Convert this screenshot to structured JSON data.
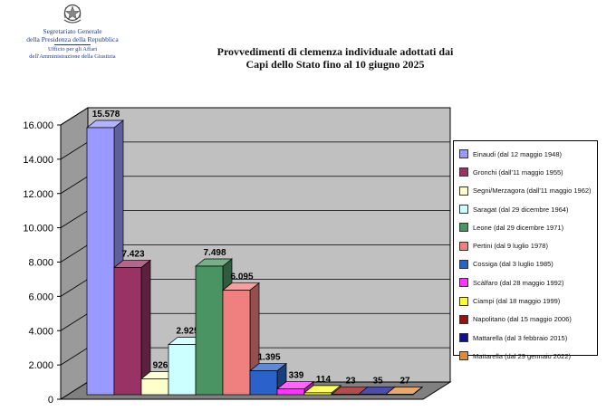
{
  "header": {
    "line1": "Segretariato Generale",
    "line2": "della Presidenza della Repubblica",
    "line3": "Ufficio per gli Affari",
    "line4": "dell'Amministrazione della Giustizia"
  },
  "chart_data": {
    "type": "bar",
    "title_line1": "Provvedimenti di clemenza individuale adottati dai",
    "title_line2": "Capi dello Stato fino al 10 giugno 2025",
    "ylim": [
      0,
      16000
    ],
    "yticks": [
      "0",
      "2.000",
      "4.000",
      "6.000",
      "8.000",
      "10.000",
      "12.000",
      "14.000",
      "16.000"
    ],
    "grid": true,
    "legend_position": "right",
    "series": [
      {
        "name": "Einaudi (dal 12 maggio 1948)",
        "value": 15578,
        "label": "15.578",
        "color": "#9999ff"
      },
      {
        "name": "Gronchi (dall'11 maggio 1955)",
        "value": 7423,
        "label": "7.423",
        "color": "#993366"
      },
      {
        "name": "Segni/Merzagora (dall'11 maggio 1962)",
        "value": 926,
        "label": "926",
        "color": "#ffffcc"
      },
      {
        "name": "Saragat (dal 29 dicembre 1964)",
        "value": 2925,
        "label": "2.925",
        "color": "#ccffff"
      },
      {
        "name": "Leone (dal 29 dicembre 1971)",
        "value": 7498,
        "label": "7.498",
        "color": "#4a9463"
      },
      {
        "name": "Pertini (dal 9 luglio 1978)",
        "value": 6095,
        "label": "6.095",
        "color": "#f08080"
      },
      {
        "name": "Cossiga (dal 3 luglio 1985)",
        "value": 1395,
        "label": "1.395",
        "color": "#2a62c9"
      },
      {
        "name": "Scàlfaro (dal 28 maggio 1992)",
        "value": 339,
        "label": "339",
        "color": "#ff33ff"
      },
      {
        "name": "Ciampi (dal 18 maggio 1999)",
        "value": 114,
        "label": "114",
        "color": "#ffff33"
      },
      {
        "name": "Napolitano (dal 15 maggio 2006)",
        "value": 23,
        "label": "23",
        "color": "#991111"
      },
      {
        "name": "Mattarella (dal 3 febbraio  2015)",
        "value": 35,
        "label": "35",
        "color": "#11118f"
      },
      {
        "name": "Mattarella (dal 29 gennaio 2022)",
        "value": 27,
        "label": "27",
        "color": "#e08a3c"
      }
    ]
  }
}
